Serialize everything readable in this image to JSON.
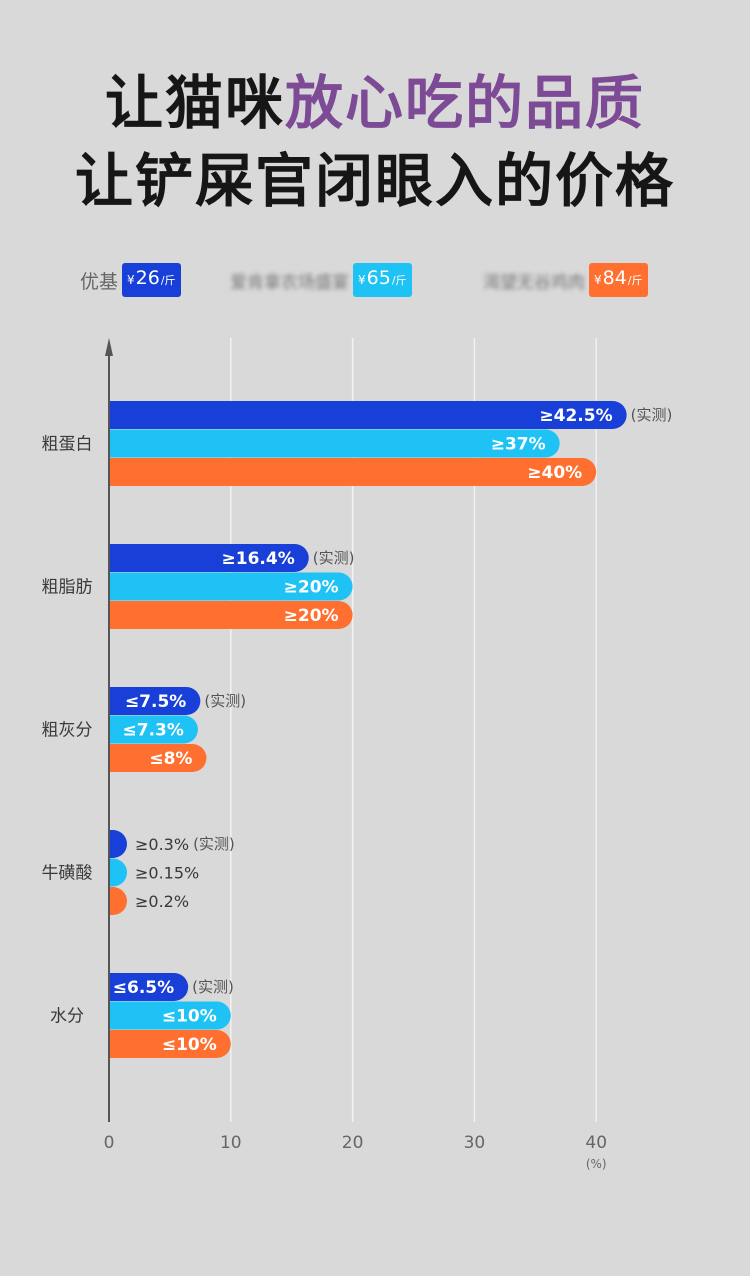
{
  "headline": {
    "line1_plain": "让猫咪",
    "line1_accent": "放心吃的品质",
    "line2": "让铲屎官闭眼入的价格"
  },
  "legend": [
    {
      "name": "优基",
      "price_yen": "¥",
      "price": "26",
      "unit": "/斤",
      "color": "#1840d8",
      "blurred": false
    },
    {
      "name": "爱肯拿农场盛宴",
      "price_yen": "¥",
      "price": "65",
      "unit": "/斤",
      "color": "#1ec2f5",
      "blurred": true
    },
    {
      "name": "渴望无谷鸡肉",
      "price_yen": "¥",
      "price": "84",
      "unit": "/斤",
      "color": "#ff7030",
      "blurred": true
    }
  ],
  "chart_data": {
    "type": "bar",
    "orientation": "horizontal",
    "categories": [
      "粗蛋白",
      "粗脂肪",
      "粗灰分",
      "牛磺酸",
      "水分"
    ],
    "series": [
      {
        "name": "优基",
        "color": "#1840d8",
        "values": [
          42.5,
          16.4,
          7.5,
          0.3,
          6.5
        ],
        "labels": [
          "≥42.5%",
          "≥16.4%",
          "≤7.5%",
          "≥0.3%",
          "≤6.5%"
        ],
        "notes": [
          "(实测)",
          "(实测)",
          "(实测)",
          "(实测)",
          "(实测)"
        ]
      },
      {
        "name": "爱肯拿农场盛宴",
        "color": "#1ec2f5",
        "values": [
          37,
          20,
          7.3,
          0.15,
          10
        ],
        "labels": [
          "≥37%",
          "≥20%",
          "≤7.3%",
          "≥0.15%",
          "≤10%"
        ]
      },
      {
        "name": "渴望无谷鸡肉",
        "color": "#ff7030",
        "values": [
          40,
          20,
          8,
          0.2,
          10
        ],
        "labels": [
          "≥40%",
          "≥20%",
          "≤8%",
          "≥0.2%",
          "≤10%"
        ]
      }
    ],
    "xlim": [
      0,
      40
    ],
    "xticks": [
      0,
      10,
      20,
      30,
      40
    ],
    "xunit": "(%)",
    "grid": true
  }
}
